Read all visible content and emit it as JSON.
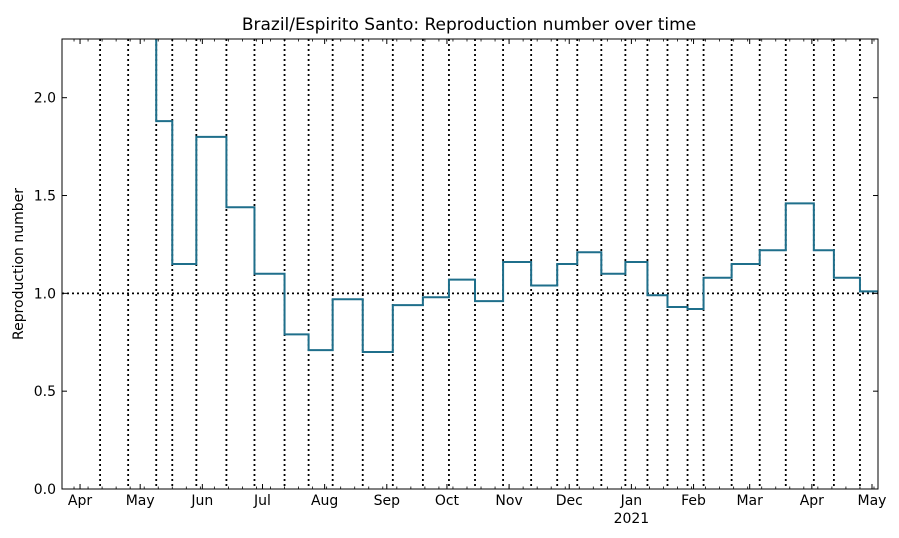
{
  "chart_data": {
    "type": "line",
    "title": "Brazil/Espirito Santo: Reproduction number over time",
    "ylabel": "Reproduction number",
    "xlabel": "",
    "xlim": [
      "2020-03-23",
      "2021-05-04"
    ],
    "ylim": [
      0.0,
      2.3
    ],
    "y_ticks": [
      {
        "value": 0.0,
        "label": "0.0"
      },
      {
        "value": 0.5,
        "label": "0.5"
      },
      {
        "value": 1.0,
        "label": "1.0"
      },
      {
        "value": 1.5,
        "label": "1.5"
      },
      {
        "value": 2.0,
        "label": "2.0"
      }
    ],
    "x_ticks": [
      {
        "date": "2020-04-01",
        "label": "Apr"
      },
      {
        "date": "2020-05-01",
        "label": "May"
      },
      {
        "date": "2020-06-01",
        "label": "Jun"
      },
      {
        "date": "2020-07-01",
        "label": "Jul"
      },
      {
        "date": "2020-08-01",
        "label": "Aug"
      },
      {
        "date": "2020-09-01",
        "label": "Sep"
      },
      {
        "date": "2020-10-01",
        "label": "Oct"
      },
      {
        "date": "2020-11-01",
        "label": "Nov"
      },
      {
        "date": "2020-12-01",
        "label": "Dec"
      },
      {
        "date": "2021-01-01",
        "label": "Jan",
        "sublabel": "2021"
      },
      {
        "date": "2021-02-01",
        "label": "Feb"
      },
      {
        "date": "2021-03-01",
        "label": "Mar"
      },
      {
        "date": "2021-04-01",
        "label": "Apr"
      },
      {
        "date": "2021-05-01",
        "label": "May"
      }
    ],
    "reference_line": {
      "y": 1.0,
      "style": "dotted"
    },
    "breakpoints": [
      "2020-04-11",
      "2020-04-25",
      "2020-05-09",
      "2020-05-17",
      "2020-05-29",
      "2020-06-13",
      "2020-06-27",
      "2020-07-12",
      "2020-07-24",
      "2020-08-05",
      "2020-08-20",
      "2020-09-04",
      "2020-09-19",
      "2020-10-02",
      "2020-10-15",
      "2020-10-29",
      "2020-11-12",
      "2020-11-25",
      "2020-12-05",
      "2020-12-17",
      "2020-12-29",
      "2021-01-09",
      "2021-01-19",
      "2021-01-29",
      "2021-02-06",
      "2021-02-20",
      "2021-03-06",
      "2021-03-19",
      "2021-04-02",
      "2021-04-12",
      "2021-04-25"
    ],
    "series": [
      {
        "color": "#1f6f8b",
        "segments": [
          {
            "start": "2020-05-09",
            "end": "2020-05-09",
            "value": 2.45
          },
          {
            "start": "2020-05-09",
            "end": "2020-05-17",
            "value": 1.88
          },
          {
            "start": "2020-05-17",
            "end": "2020-05-29",
            "value": 1.15
          },
          {
            "start": "2020-05-29",
            "end": "2020-06-13",
            "value": 1.8
          },
          {
            "start": "2020-06-13",
            "end": "2020-06-27",
            "value": 1.44
          },
          {
            "start": "2020-06-27",
            "end": "2020-07-12",
            "value": 1.1
          },
          {
            "start": "2020-07-12",
            "end": "2020-07-24",
            "value": 0.79
          },
          {
            "start": "2020-07-24",
            "end": "2020-08-05",
            "value": 0.71
          },
          {
            "start": "2020-08-05",
            "end": "2020-08-20",
            "value": 0.97
          },
          {
            "start": "2020-08-20",
            "end": "2020-09-04",
            "value": 0.7
          },
          {
            "start": "2020-09-04",
            "end": "2020-09-19",
            "value": 0.94
          },
          {
            "start": "2020-09-19",
            "end": "2020-10-02",
            "value": 0.98
          },
          {
            "start": "2020-10-02",
            "end": "2020-10-15",
            "value": 1.07
          },
          {
            "start": "2020-10-15",
            "end": "2020-10-29",
            "value": 0.96
          },
          {
            "start": "2020-10-29",
            "end": "2020-11-12",
            "value": 1.16
          },
          {
            "start": "2020-11-12",
            "end": "2020-11-25",
            "value": 1.04
          },
          {
            "start": "2020-11-25",
            "end": "2020-12-05",
            "value": 1.15
          },
          {
            "start": "2020-12-05",
            "end": "2020-12-17",
            "value": 1.21
          },
          {
            "start": "2020-12-17",
            "end": "2020-12-29",
            "value": 1.1
          },
          {
            "start": "2020-12-29",
            "end": "2021-01-09",
            "value": 1.16
          },
          {
            "start": "2021-01-09",
            "end": "2021-01-19",
            "value": 0.99
          },
          {
            "start": "2021-01-19",
            "end": "2021-01-29",
            "value": 0.93
          },
          {
            "start": "2021-01-29",
            "end": "2021-02-06",
            "value": 0.92
          },
          {
            "start": "2021-02-06",
            "end": "2021-02-20",
            "value": 1.08
          },
          {
            "start": "2021-02-20",
            "end": "2021-03-06",
            "value": 1.15
          },
          {
            "start": "2021-03-06",
            "end": "2021-03-19",
            "value": 1.22
          },
          {
            "start": "2021-03-19",
            "end": "2021-04-02",
            "value": 1.46
          },
          {
            "start": "2021-04-02",
            "end": "2021-04-12",
            "value": 1.22
          },
          {
            "start": "2021-04-12",
            "end": "2021-04-25",
            "value": 1.08
          },
          {
            "start": "2021-04-25",
            "end": "2021-05-04",
            "value": 1.01
          }
        ]
      }
    ],
    "grid": false,
    "legend": "none"
  }
}
